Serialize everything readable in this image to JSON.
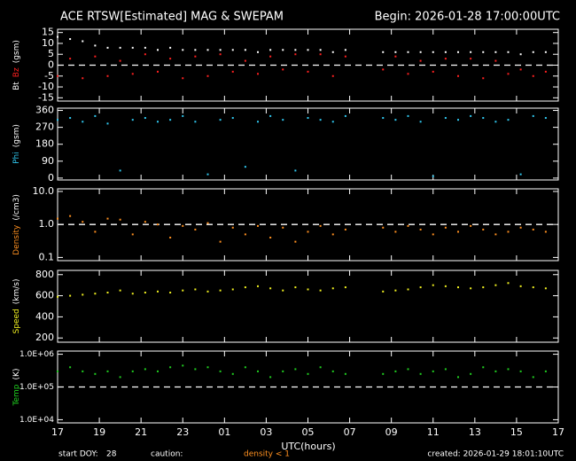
{
  "chart_data": {
    "type": "scatter",
    "title": "ACE RTSW[Estimated] MAG & SWEPAM",
    "begin": "Begin: 2026-01-28 17:00:00UTC",
    "xlabel": "UTC(hours)",
    "xlim": [
      0,
      24
    ],
    "xticks": [
      {
        "value": 0,
        "label": "17"
      },
      {
        "value": 2,
        "label": "19"
      },
      {
        "value": 4,
        "label": "21"
      },
      {
        "value": 6,
        "label": "23"
      },
      {
        "value": 8,
        "label": "01"
      },
      {
        "value": 10,
        "label": "03"
      },
      {
        "value": 12,
        "label": "05"
      },
      {
        "value": 14,
        "label": "07"
      },
      {
        "value": 16,
        "label": "09"
      },
      {
        "value": 18,
        "label": "11"
      },
      {
        "value": 20,
        "label": "13"
      },
      {
        "value": 22,
        "label": "15"
      },
      {
        "value": 24,
        "label": "17"
      }
    ],
    "x": [
      0,
      0.6,
      1.2,
      1.8,
      2.4,
      3,
      3.6,
      4.2,
      4.8,
      5.4,
      6,
      6.6,
      7.2,
      7.8,
      8.4,
      9,
      9.6,
      10.2,
      10.8,
      11.4,
      12,
      12.6,
      13.2,
      13.8,
      15.6,
      16.2,
      16.8,
      17.4,
      18,
      18.6,
      19.2,
      19.8,
      20.4,
      21,
      21.6,
      22.2,
      22.8,
      23.4
    ],
    "panels": [
      {
        "ylabel": [
          {
            "text": "Bt",
            "color": "#ffffff"
          },
          {
            "text": "Bz",
            "color": "#ff2020"
          },
          {
            "text": "(gsm)",
            "color": "#ffffff"
          }
        ],
        "ylim": [
          -16.5,
          16.5
        ],
        "log": false,
        "ref_line": 0,
        "yticks": [
          15,
          10,
          5,
          0,
          -5,
          -10,
          -15
        ],
        "series": [
          {
            "color": "#ffffff",
            "values": [
              13,
              12,
              11,
              9,
              8,
              8,
              8,
              8,
              7,
              8,
              7,
              7,
              7,
              7,
              7,
              7,
              6,
              7,
              7,
              7,
              7,
              7,
              6,
              7,
              6,
              6,
              6,
              6,
              6,
              6,
              6,
              6,
              6,
              6,
              6,
              5,
              6,
              6
            ]
          },
          {
            "color": "#ff2020",
            "values": [
              -5,
              3,
              -6,
              4,
              -5,
              2,
              -4,
              5,
              -3,
              3,
              -6,
              4,
              -5,
              5,
              -3,
              2,
              -4,
              4,
              -2,
              5,
              -3,
              5,
              -5,
              4,
              -2,
              4,
              -4,
              2,
              -3,
              3,
              -5,
              3,
              -6,
              2,
              -4,
              -2,
              -5,
              -3
            ]
          }
        ]
      },
      {
        "ylabel": [
          {
            "text": "Phi",
            "color": "#30c8f0"
          },
          {
            "text": "(gsm)",
            "color": "#ffffff"
          }
        ],
        "ylim": [
          -10,
          372
        ],
        "log": false,
        "yticks": [
          360,
          270,
          180,
          90,
          0
        ],
        "series": [
          {
            "color": "#30c8f0",
            "values": [
              310,
              320,
              300,
              330,
              290,
              40,
              310,
              320,
              300,
              310,
              330,
              300,
              20,
              310,
              320,
              60,
              300,
              330,
              310,
              40,
              320,
              310,
              300,
              330,
              320,
              310,
              330,
              300,
              10,
              320,
              310,
              330,
              320,
              300,
              310,
              20,
              330,
              320
            ]
          }
        ]
      },
      {
        "ylabel": [
          {
            "text": "Density",
            "color": "#ff9020"
          },
          {
            "text": "(/cm3)",
            "color": "#ffffff"
          }
        ],
        "ylim": [
          0.08,
          12
        ],
        "log": true,
        "ref_line": 1,
        "yticks": [
          {
            "value": 10,
            "label": "10.0"
          },
          {
            "value": 1,
            "label": "1.0"
          },
          0.1
        ],
        "series": [
          {
            "color": "#ff9020",
            "values": [
              1.5,
              1.8,
              1.2,
              0.6,
              1.5,
              1.4,
              0.5,
              1.2,
              1.0,
              0.4,
              0.9,
              0.7,
              1.1,
              0.3,
              0.8,
              0.5,
              0.9,
              0.4,
              0.8,
              0.3,
              0.6,
              0.9,
              0.5,
              0.7,
              0.8,
              0.6,
              0.9,
              0.7,
              0.5,
              0.8,
              0.6,
              0.9,
              0.7,
              0.5,
              0.6,
              0.8,
              0.7,
              0.6
            ]
          }
        ]
      },
      {
        "ylabel": [
          {
            "text": "Speed",
            "color": "#f0f020"
          },
          {
            "text": "(km/s)",
            "color": "#ffffff"
          }
        ],
        "ylim": [
          160,
          840
        ],
        "log": false,
        "yticks": [
          800,
          600,
          400,
          200
        ],
        "series": [
          {
            "color": "#f0f020",
            "values": [
              590,
              600,
              610,
              620,
              630,
              650,
              620,
              630,
              640,
              630,
              650,
              660,
              640,
              650,
              660,
              680,
              690,
              670,
              650,
              680,
              660,
              650,
              670,
              680,
              640,
              650,
              660,
              680,
              700,
              690,
              680,
              670,
              680,
              700,
              720,
              690,
              680,
              670
            ]
          }
        ]
      },
      {
        "ylabel": [
          {
            "text": "Temp",
            "color": "#20d020"
          },
          {
            "text": "(K)",
            "color": "#ffffff"
          }
        ],
        "ylim": [
          8000,
          1250000
        ],
        "log": true,
        "ref_line": 100000,
        "yticks": [
          {
            "value": 1000000,
            "label": "1.0E+06"
          },
          {
            "value": 100000,
            "label": "1.0E+05"
          },
          {
            "value": 10000,
            "label": "1.0E+04"
          }
        ],
        "series": [
          {
            "color": "#20d020",
            "values": [
              300000,
              400000,
              300000,
              250000,
              300000,
              200000,
              300000,
              350000,
              300000,
              400000,
              450000,
              350000,
              400000,
              300000,
              250000,
              400000,
              300000,
              200000,
              300000,
              350000,
              250000,
              400000,
              300000,
              250000,
              250000,
              300000,
              350000,
              250000,
              300000,
              350000,
              200000,
              250000,
              400000,
              300000,
              350000,
              300000,
              200000,
              300000
            ]
          }
        ]
      }
    ],
    "footer": {
      "start_label": "start DOY:",
      "start_doy": 28,
      "caution": "caution:",
      "caution_note": "density < 1",
      "caution_color": "#ff9020",
      "created": "created: 2026-01-29 18:01:10UTC"
    }
  }
}
